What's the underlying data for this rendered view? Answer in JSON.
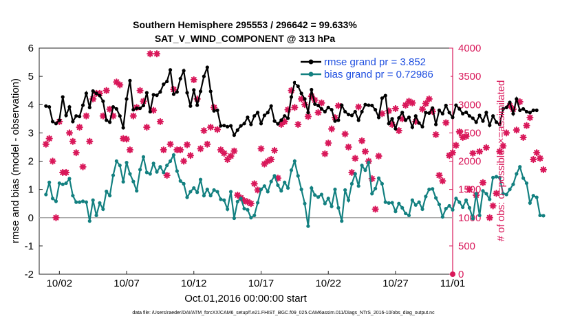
{
  "chart_data": {
    "type": "line",
    "title": "Southern Hemisphere 295553 / 296642 = 99.633%",
    "subtitle": "SAT_V_WIND_COMPONENT @ 313 hPa",
    "xlabel": "Oct.01,2016 00:00:00 start",
    "ylabel": "rmse and bias (model - observation)",
    "y2label": "# of obs: o=possible; ×=assimilated",
    "footer": "data file: /Users/raeder/DAI/ATM_forcXX/CAM6_setup/f.e21.FHIST_BGC.f09_025.CAM6assim.011/Diags_NTrS_2016-10/obs_diag_output.nc",
    "xlim": [
      0.5,
      31.25
    ],
    "ylim": [
      -2,
      6
    ],
    "y2lim": [
      0,
      4000
    ],
    "x_ticks": [
      {
        "x": 2,
        "label": "10/02"
      },
      {
        "x": 7,
        "label": "10/07"
      },
      {
        "x": 12,
        "label": "10/12"
      },
      {
        "x": 17,
        "label": "10/17"
      },
      {
        "x": 22,
        "label": "10/22"
      },
      {
        "x": 27,
        "label": "10/27"
      },
      {
        "x": 32,
        "label": "11/01"
      }
    ],
    "y_ticks": [
      "-2",
      "-1",
      "0",
      "1",
      "2",
      "3",
      "4",
      "5",
      "6"
    ],
    "y2_ticks": [
      "0",
      "500",
      "1000",
      "1500",
      "2000",
      "2500",
      "3000",
      "3500",
      "4000"
    ],
    "legend_position": "top-right",
    "colors": {
      "rmse": "#000000",
      "bias": "#138080",
      "obs": "#d9185a",
      "zero_line": "#aaaaaa",
      "legend_text": "#1f4fe0"
    },
    "x_start": 1.0,
    "x_step": 0.25,
    "series": [
      {
        "name": "rmse grand pr = 3.852",
        "key": "rmse",
        "values": [
          3.95,
          3.92,
          3.4,
          3.33,
          3.45,
          4.27,
          3.62,
          3.92,
          3.4,
          3.6,
          3.58,
          3.98,
          4.4,
          3.9,
          4.48,
          4.4,
          4.32,
          4.12,
          3.45,
          3.38,
          3.92,
          3.85,
          3.6,
          3.18,
          4.2,
          4.85,
          3.82,
          3.87,
          3.87,
          3.97,
          4.42,
          3.75,
          4.35,
          4.33,
          4.45,
          4.72,
          4.82,
          5.23,
          4.37,
          4.45,
          4.92,
          5.2,
          4.42,
          3.95,
          4.52,
          3.98,
          4.47,
          5.0,
          5.32,
          4.47,
          3.78,
          3.8,
          3.25,
          3.26,
          3.22,
          3.25,
          2.92,
          3.1,
          3.25,
          3.33,
          3.55,
          3.3,
          3.6,
          3.72,
          3.33,
          3.62,
          3.72,
          3.95,
          3.42,
          3.32,
          3.45,
          3.6,
          3.52,
          4.27,
          4.78,
          4.65,
          4.4,
          4.2,
          3.72,
          4.53,
          4.02,
          3.97,
          3.85,
          3.75,
          3.9,
          3.82,
          3.42,
          3.45,
          3.98,
          3.75,
          3.65,
          3.62,
          3.75,
          3.45,
          3.75,
          4.0,
          3.98,
          3.97,
          3.82,
          3.55,
          4.23,
          4.32,
          3.33,
          3.5,
          3.15,
          3.53,
          3.72,
          3.45,
          3.55,
          3.2,
          3.6,
          3.35,
          3.22,
          3.72,
          3.7,
          3.88,
          3.3,
          3.8,
          3.68,
          3.97,
          3.72,
          3.55,
          3.98,
          3.85,
          3.68,
          3.73,
          3.6,
          3.52,
          3.38,
          3.62,
          3.42,
          3.72,
          3.27,
          3.6,
          3.38,
          3.3,
          3.85,
          3.9,
          4.08,
          3.68,
          4.2,
          3.8,
          3.85,
          3.75,
          3.72,
          3.8,
          3.8
        ]
      },
      {
        "name": "bias grand pr = 0.72986",
        "key": "bias",
        "values": [
          0.82,
          1.25,
          0.68,
          0.58,
          1.22,
          1.18,
          1.22,
          1.38,
          0.78,
          0.55,
          0.55,
          0.58,
          0.55,
          -0.12,
          0.62,
          0.08,
          0.52,
          0.3,
          0.93,
          0.78,
          1.5,
          2.0,
          1.85,
          1.27,
          1.95,
          1.55,
          1.28,
          0.95,
          1.7,
          2.15,
          1.6,
          1.55,
          1.92,
          1.62,
          1.8,
          1.6,
          1.85,
          2.0,
          2.22,
          1.65,
          1.3,
          1.2,
          0.72,
          0.92,
          1.05,
          0.9,
          1.35,
          0.78,
          1.0,
          0.78,
          0.98,
          0.92,
          0.65,
          0.62,
          0.3,
          0.92,
          -0.02,
          0.57,
          0.68,
          0.32,
          0.28,
          0.0,
          0.08,
          0.53,
          1.0,
          1.12,
          0.92,
          1.28,
          1.48,
          1.15,
          0.95,
          1.25,
          1.05,
          1.68,
          2.0,
          1.48,
          1.0,
          0.5,
          -0.3,
          1.05,
          0.8,
          0.73,
          0.82,
          0.5,
          0.68,
          0.4,
          1.0,
          0.35,
          -0.12,
          0.98,
          0.62,
          1.2,
          1.55,
          1.12,
          1.85,
          1.68,
          1.95,
          0.85,
          1.03,
          1.4,
          1.2,
          0.55,
          0.52,
          0.53,
          0.22,
          0.5,
          0.35,
          0.15,
          0.08,
          0.62,
          0.45,
          0.55,
          0.3,
          0.75,
          1.0,
          1.02,
          0.7,
          0.47,
          0.03,
          0.32,
          0.42,
          0.28,
          0.68,
          0.55,
          0.37,
          0.62,
          0.35,
          -0.03,
          0.85,
          0.08,
          0.95,
          0.85,
          0.65,
          1.42,
          1.45,
          1.42,
          0.85,
          0.82,
          1.0,
          1.18,
          1.55,
          1.8,
          1.4,
          1.22,
          0.52,
          0.78,
          0.72,
          0.08,
          0.07
        ]
      },
      {
        "name": "obs",
        "key": "obs",
        "values": [
          2300,
          2400,
          2000,
          1000,
          2700,
          1800,
          1800,
          2500,
          2350,
          2150,
          2600,
          1900,
          2800,
          2350,
          3100,
          3200,
          3200,
          2800,
          3250,
          2920,
          2800,
          3400,
          3350,
          2400,
          2390,
          2200,
          2800,
          2950,
          3250,
          3060,
          2600,
          3900,
          2900,
          3900,
          2700,
          2200,
          1750,
          2300,
          3270,
          2200,
          2200,
          2000,
          2290,
          2100,
          3440,
          3100,
          2220,
          2540,
          2300,
          2600,
          2950,
          2560,
          2200,
          2140,
          2030,
          2090,
          2180,
          1400,
          1350,
          1300,
          1280,
          1250,
          1600,
          1490,
          2220,
          1950,
          2000,
          2030,
          2190,
          1700,
          2650,
          2700,
          2910,
          3250,
          2950,
          2650,
          3100,
          3000,
          2790,
          3150,
          3080,
          2860,
          3030,
          2130,
          2320,
          2570,
          2770,
          2980,
          3460,
          2480,
          2250,
          1800,
          2050,
          2960,
          2360,
          2170,
          2000,
          1690,
          1150,
          2090,
          2840,
          3640,
          2890,
          2650,
          2930,
          2540,
          2750,
          2990,
          3060,
          3030,
          2700,
          3680,
          2920,
          3020,
          3100,
          2880,
          2470,
          1750,
          1650,
          2680,
          2100,
          2150,
          2280,
          2520,
          2420,
          2440,
          1500,
          2140,
          1400,
          2170,
          1620,
          2240,
          1000,
          1210,
          1430,
          2170,
          2270,
          2500,
          2980,
          2920,
          2550,
          3050,
          2420,
          2630,
          2770,
          2030,
          2150,
          2050,
          1850
        ]
      }
    ]
  }
}
